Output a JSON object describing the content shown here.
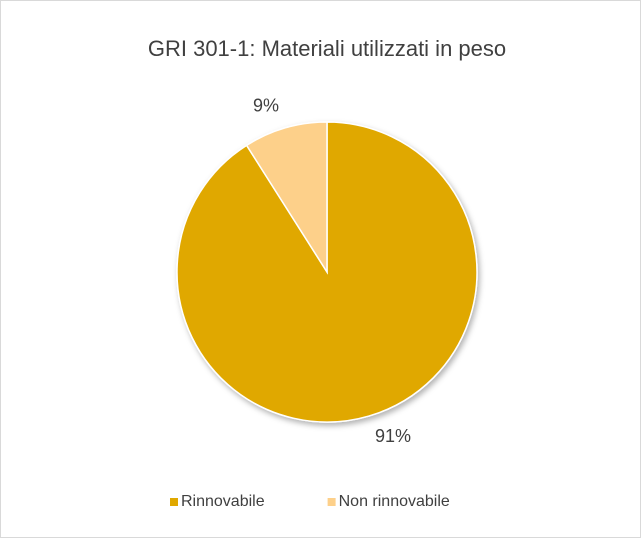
{
  "chart_data": {
    "type": "pie",
    "title": "GRI 301-1: Materiali utilizzati in peso",
    "categories": [
      "Rinnovabile",
      "Non rinnovabile"
    ],
    "values": [
      91,
      9
    ],
    "value_labels": [
      "91%",
      "9%"
    ],
    "colors": [
      "#e0a800",
      "#fdd08a"
    ],
    "legend": "bottom"
  }
}
